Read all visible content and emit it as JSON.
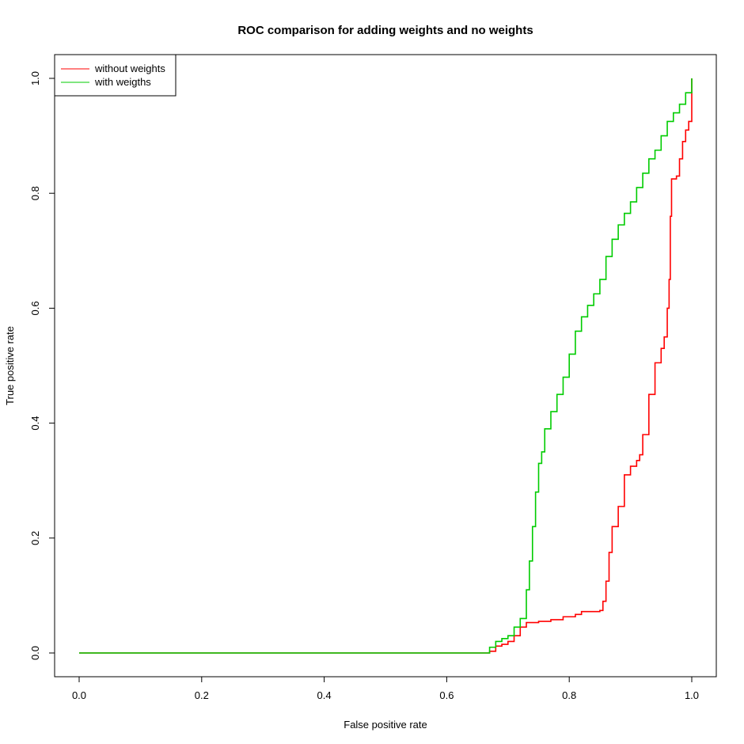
{
  "chart_data": {
    "type": "line",
    "title": "ROC comparison for adding weights and no weights",
    "xlabel": "False positive rate",
    "ylabel": "True positive rate",
    "xlim": [
      0.0,
      1.0
    ],
    "ylim": [
      0.0,
      1.0
    ],
    "xticks": [
      "0.0",
      "0.2",
      "0.4",
      "0.6",
      "0.8",
      "1.0"
    ],
    "yticks": [
      "0.0",
      "0.2",
      "0.4",
      "0.6",
      "0.8",
      "1.0"
    ],
    "grid": false,
    "legend_position": "top-left",
    "series": [
      {
        "name": "without weights",
        "color": "#ff0000",
        "points": [
          [
            0.0,
            0.0
          ],
          [
            0.665,
            0.0
          ],
          [
            0.67,
            0.003
          ],
          [
            0.68,
            0.012
          ],
          [
            0.69,
            0.015
          ],
          [
            0.7,
            0.02
          ],
          [
            0.71,
            0.03
          ],
          [
            0.72,
            0.045
          ],
          [
            0.73,
            0.053
          ],
          [
            0.75,
            0.055
          ],
          [
            0.77,
            0.058
          ],
          [
            0.79,
            0.063
          ],
          [
            0.81,
            0.067
          ],
          [
            0.82,
            0.072
          ],
          [
            0.85,
            0.074
          ],
          [
            0.855,
            0.09
          ],
          [
            0.86,
            0.125
          ],
          [
            0.865,
            0.175
          ],
          [
            0.87,
            0.22
          ],
          [
            0.88,
            0.255
          ],
          [
            0.89,
            0.31
          ],
          [
            0.9,
            0.325
          ],
          [
            0.91,
            0.335
          ],
          [
            0.915,
            0.345
          ],
          [
            0.92,
            0.38
          ],
          [
            0.93,
            0.45
          ],
          [
            0.94,
            0.505
          ],
          [
            0.95,
            0.53
          ],
          [
            0.955,
            0.55
          ],
          [
            0.96,
            0.6
          ],
          [
            0.963,
            0.65
          ],
          [
            0.965,
            0.76
          ],
          [
            0.967,
            0.825
          ],
          [
            0.975,
            0.83
          ],
          [
            0.98,
            0.86
          ],
          [
            0.985,
            0.89
          ],
          [
            0.99,
            0.91
          ],
          [
            0.995,
            0.925
          ],
          [
            1.0,
            0.96
          ],
          [
            1.0,
            1.0
          ]
        ]
      },
      {
        "name": "with weigths",
        "color": "#00cc00",
        "points": [
          [
            0.0,
            0.0
          ],
          [
            0.665,
            0.0
          ],
          [
            0.67,
            0.01
          ],
          [
            0.68,
            0.02
          ],
          [
            0.69,
            0.025
          ],
          [
            0.7,
            0.03
          ],
          [
            0.71,
            0.045
          ],
          [
            0.72,
            0.06
          ],
          [
            0.73,
            0.11
          ],
          [
            0.735,
            0.16
          ],
          [
            0.74,
            0.22
          ],
          [
            0.745,
            0.28
          ],
          [
            0.75,
            0.33
          ],
          [
            0.755,
            0.35
          ],
          [
            0.76,
            0.39
          ],
          [
            0.77,
            0.42
          ],
          [
            0.78,
            0.45
          ],
          [
            0.79,
            0.48
          ],
          [
            0.8,
            0.52
          ],
          [
            0.81,
            0.56
          ],
          [
            0.82,
            0.585
          ],
          [
            0.83,
            0.605
          ],
          [
            0.84,
            0.625
          ],
          [
            0.85,
            0.65
          ],
          [
            0.86,
            0.69
          ],
          [
            0.87,
            0.72
          ],
          [
            0.88,
            0.745
          ],
          [
            0.89,
            0.765
          ],
          [
            0.9,
            0.785
          ],
          [
            0.91,
            0.81
          ],
          [
            0.92,
            0.835
          ],
          [
            0.93,
            0.86
          ],
          [
            0.94,
            0.875
          ],
          [
            0.95,
            0.9
          ],
          [
            0.96,
            0.925
          ],
          [
            0.97,
            0.94
          ],
          [
            0.98,
            0.955
          ],
          [
            0.99,
            0.975
          ],
          [
            1.0,
            1.0
          ]
        ]
      }
    ]
  }
}
